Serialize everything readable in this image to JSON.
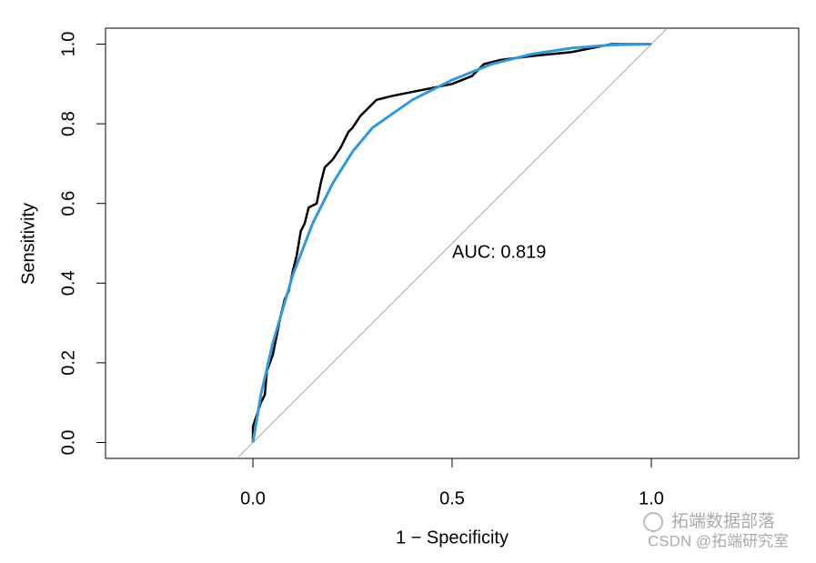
{
  "chart_data": {
    "type": "line",
    "x_label": "1 − Specificity",
    "y_label": "Sensitivity",
    "annotation": "AUC: 0.819",
    "xlim": [
      -0.37,
      1.37
    ],
    "ylim": [
      -0.04,
      1.04
    ],
    "xticks": [
      {
        "value": 0,
        "label": "0.0"
      },
      0.5,
      {
        "value": 1,
        "label": "1.0"
      }
    ],
    "yticks": [
      {
        "value": 0,
        "label": "0.0"
      },
      0.2,
      0.4,
      0.6,
      0.8,
      {
        "value": 1,
        "label": "1.0"
      }
    ],
    "reference_color": "#aaaaaa",
    "series": [
      {
        "color": "#000000",
        "x": [
          0,
          0,
          0.01,
          0.02,
          0.03,
          0.035,
          0.05,
          0.06,
          0.07,
          0.08,
          0.09,
          0.1,
          0.11,
          0.12,
          0.13,
          0.14,
          0.16,
          0.17,
          0.18,
          0.2,
          0.22,
          0.24,
          0.25,
          0.27,
          0.29,
          0.31,
          0.35,
          0.4,
          0.45,
          0.5,
          0.55,
          0.58,
          0.62,
          0.7,
          0.8,
          0.85,
          0.9,
          1.0
        ],
        "values": [
          0,
          0.04,
          0.07,
          0.1,
          0.12,
          0.18,
          0.22,
          0.27,
          0.32,
          0.36,
          0.38,
          0.43,
          0.47,
          0.53,
          0.55,
          0.59,
          0.6,
          0.65,
          0.69,
          0.71,
          0.74,
          0.78,
          0.79,
          0.82,
          0.84,
          0.86,
          0.87,
          0.88,
          0.89,
          0.9,
          0.92,
          0.95,
          0.96,
          0.97,
          0.98,
          0.99,
          1.0,
          1.0
        ]
      },
      {
        "color": "#3399d6",
        "x": [
          0,
          0.02,
          0.05,
          0.1,
          0.15,
          0.2,
          0.25,
          0.3,
          0.4,
          0.5,
          0.6,
          0.7,
          0.8,
          0.9,
          1
        ],
        "values": [
          0,
          0.12,
          0.25,
          0.42,
          0.55,
          0.65,
          0.73,
          0.79,
          0.86,
          0.91,
          0.95,
          0.975,
          0.99,
          0.998,
          1
        ]
      }
    ]
  },
  "watermark": {
    "line1": "拓端数据部落",
    "line2": "CSDN @拓端研究室"
  }
}
